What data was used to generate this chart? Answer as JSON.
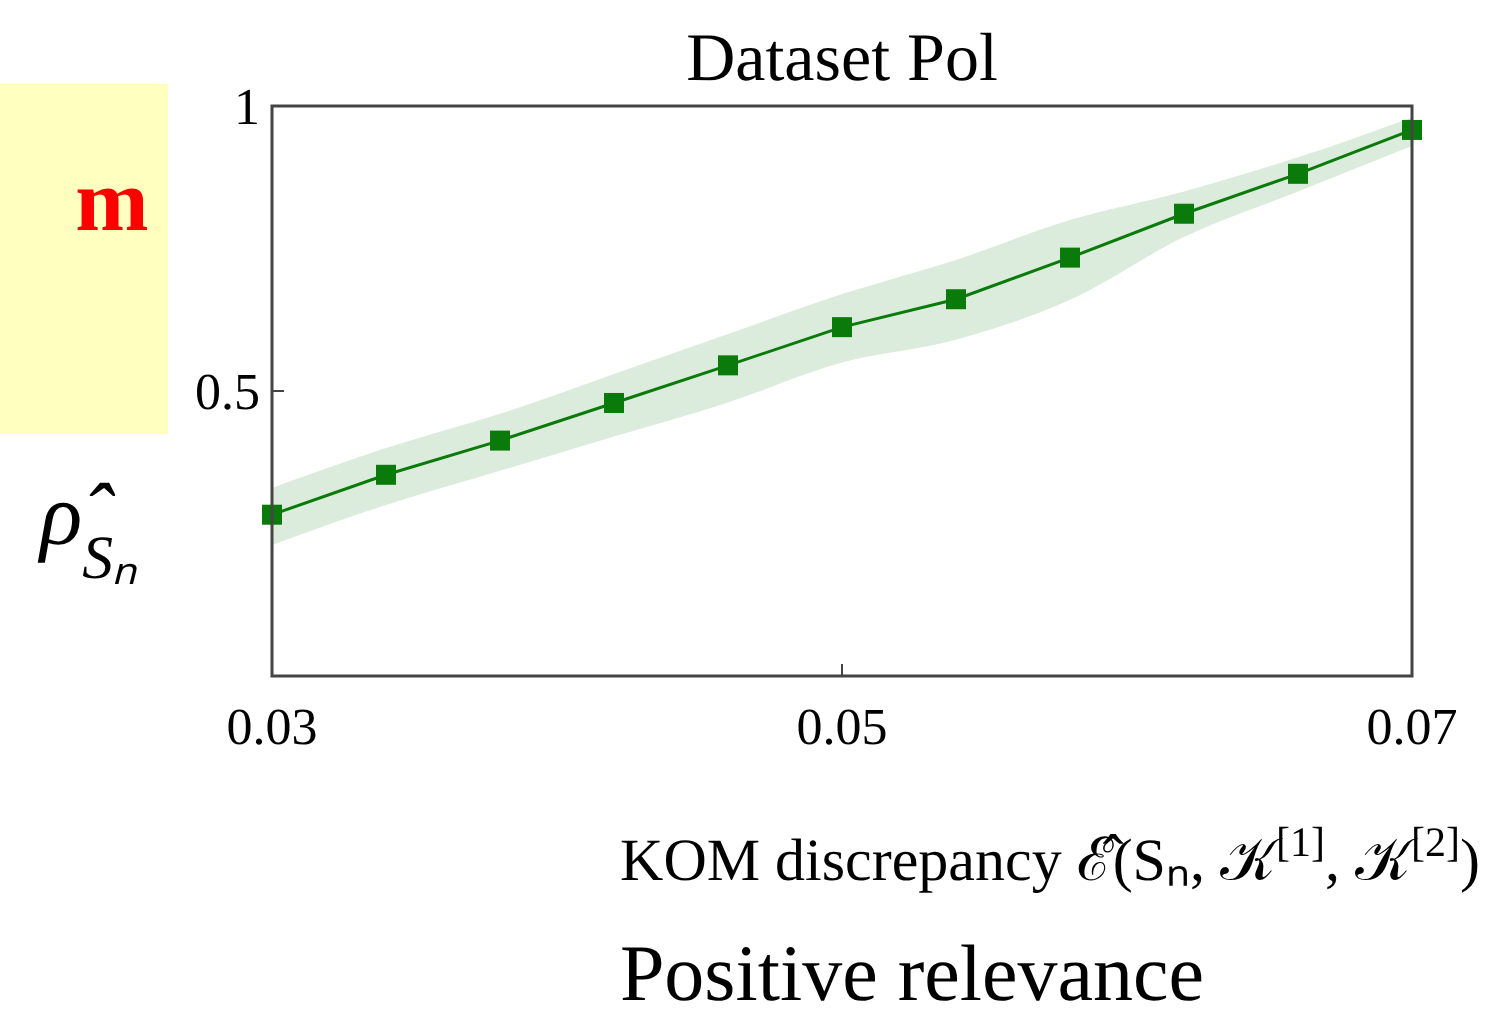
{
  "chart_data": {
    "type": "line",
    "title": "Dataset Pol",
    "xlabel": "KOM discrepancy ℰ̂(Sₙ, 𝒦$^{[1]}$, 𝒦$^{[2]}$)",
    "ylabel": "ρ̂$_{Sₙ}$",
    "annotations": [
      "Positive relevance",
      "m"
    ],
    "x": [
      0.03,
      0.034,
      0.038,
      0.042,
      0.046,
      0.05,
      0.054,
      0.058,
      0.062,
      0.066,
      0.07
    ],
    "series": [
      {
        "color": "#0a7a0a",
        "values": [
          0.283,
          0.353,
          0.413,
          0.479,
          0.545,
          0.612,
          0.661,
          0.734,
          0.811,
          0.881,
          0.958
        ],
        "lower": [
          0.23,
          0.3,
          0.36,
          0.42,
          0.48,
          0.55,
          0.59,
          0.66,
          0.77,
          0.85,
          0.93
        ],
        "upper": [
          0.33,
          0.4,
          0.46,
          0.53,
          0.6,
          0.67,
          0.73,
          0.8,
          0.85,
          0.91,
          0.98
        ]
      }
    ],
    "xlim": [
      0.03,
      0.07
    ],
    "xticks": [
      0.03,
      0.05,
      0.07
    ],
    "ylim": [
      0,
      1
    ],
    "yticks": [
      0.5,
      1
    ],
    "marker": "square",
    "line_style": "solid",
    "grid": false
  }
}
